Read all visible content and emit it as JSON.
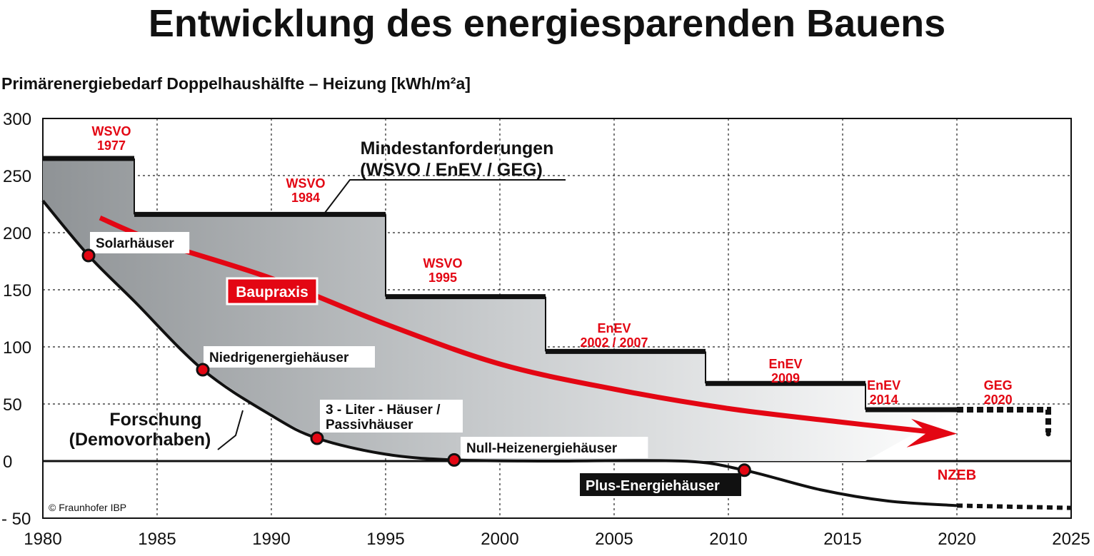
{
  "title": "Entwicklung des energiesparenden Bauens",
  "subtitle": "Primärenergiebedarf Doppelhaushälfte – Heizung [kWh/m²a]",
  "copyright": "© Fraunhofer IBP",
  "colors": {
    "red": "#e30613",
    "black": "#111111",
    "fill": "#8f9396"
  },
  "chart_data": {
    "type": "line",
    "title": "Entwicklung des energiesparenden Bauens",
    "ylabel": "Primärenergiebedarf Doppelhaushälfte – Heizung [kWh/m²a]",
    "xlim": [
      1980,
      2025
    ],
    "ylim": [
      -50,
      300
    ],
    "grid": true,
    "xticks": [
      "1980",
      "1985",
      "1990",
      "1995",
      "2000",
      "2005",
      "2010",
      "2015",
      "2020",
      "2025"
    ],
    "yticks": [
      "300",
      "250",
      "200",
      "150",
      "100",
      "50",
      "0",
      "- 50"
    ],
    "xtick_values": [
      1980,
      1985,
      1990,
      1995,
      2000,
      2005,
      2010,
      2015,
      2020,
      2025
    ],
    "ytick_values": [
      300,
      250,
      200,
      150,
      100,
      50,
      0,
      -50
    ],
    "mindestanforderungen": {
      "label_line1": "Mindestanforderungen",
      "label_line2": "(WSVO / EnEV / GEG)",
      "steps": [
        {
          "from": 1980,
          "to": 1984,
          "value": 265,
          "label1": "WSVO",
          "label2": "1977"
        },
        {
          "from": 1984,
          "to": 1995,
          "value": 216,
          "label1": "WSVO",
          "label2": "1984"
        },
        {
          "from": 1995,
          "to": 2002,
          "value": 144,
          "label1": "WSVO",
          "label2": "1995"
        },
        {
          "from": 2002,
          "to": 2009,
          "value": 96,
          "label1": "EnEV",
          "label2": "2002 / 2007"
        },
        {
          "from": 2009,
          "to": 2016,
          "value": 68,
          "label1": "EnEV",
          "label2": "2009"
        },
        {
          "from": 2016,
          "to": 2020,
          "value": 45,
          "label1": "EnEV",
          "label2": "2014"
        },
        {
          "from": 2020,
          "to": 2024,
          "value": 45,
          "label1": "GEG",
          "label2": "2020",
          "dashed": true,
          "drop_to": 25
        }
      ]
    },
    "baupraxis": {
      "label": "Baupraxis",
      "x": [
        1982.5,
        1985,
        1990,
        1995,
        2000,
        2005,
        2010,
        2015,
        2020
      ],
      "y": [
        213,
        192,
        160,
        120,
        85,
        63,
        46,
        34,
        24
      ]
    },
    "forschung": {
      "label_line1": "Forschung",
      "label_line2": "(Demovorhaben)",
      "x": [
        1980,
        1982,
        1984,
        1987,
        1990,
        1992,
        1995,
        1998,
        2002,
        2008,
        2010.7,
        2014,
        2017,
        2020
      ],
      "y": [
        228,
        180,
        140,
        80,
        40,
        20,
        6,
        1,
        0,
        0,
        -8,
        -25,
        -35,
        -39
      ],
      "dashed_x": [
        2020,
        2025
      ],
      "dashed_y": [
        -39,
        -41
      ],
      "milestones": [
        {
          "x": 1982,
          "y": 180,
          "label": "Solarhäuser"
        },
        {
          "x": 1987,
          "y": 80,
          "label": "Niedrigenergiehäuser"
        },
        {
          "x": 1992,
          "y": 20,
          "label1": "3 - Liter - Häuser /",
          "label2": "Passivhäuser"
        },
        {
          "x": 1998,
          "y": 1,
          "label": "Null-Heizenergiehäuser"
        },
        {
          "x": 2010.7,
          "y": -8,
          "label": "Plus-Energiehäuser"
        }
      ]
    },
    "nzeb_label": "NZEB"
  }
}
